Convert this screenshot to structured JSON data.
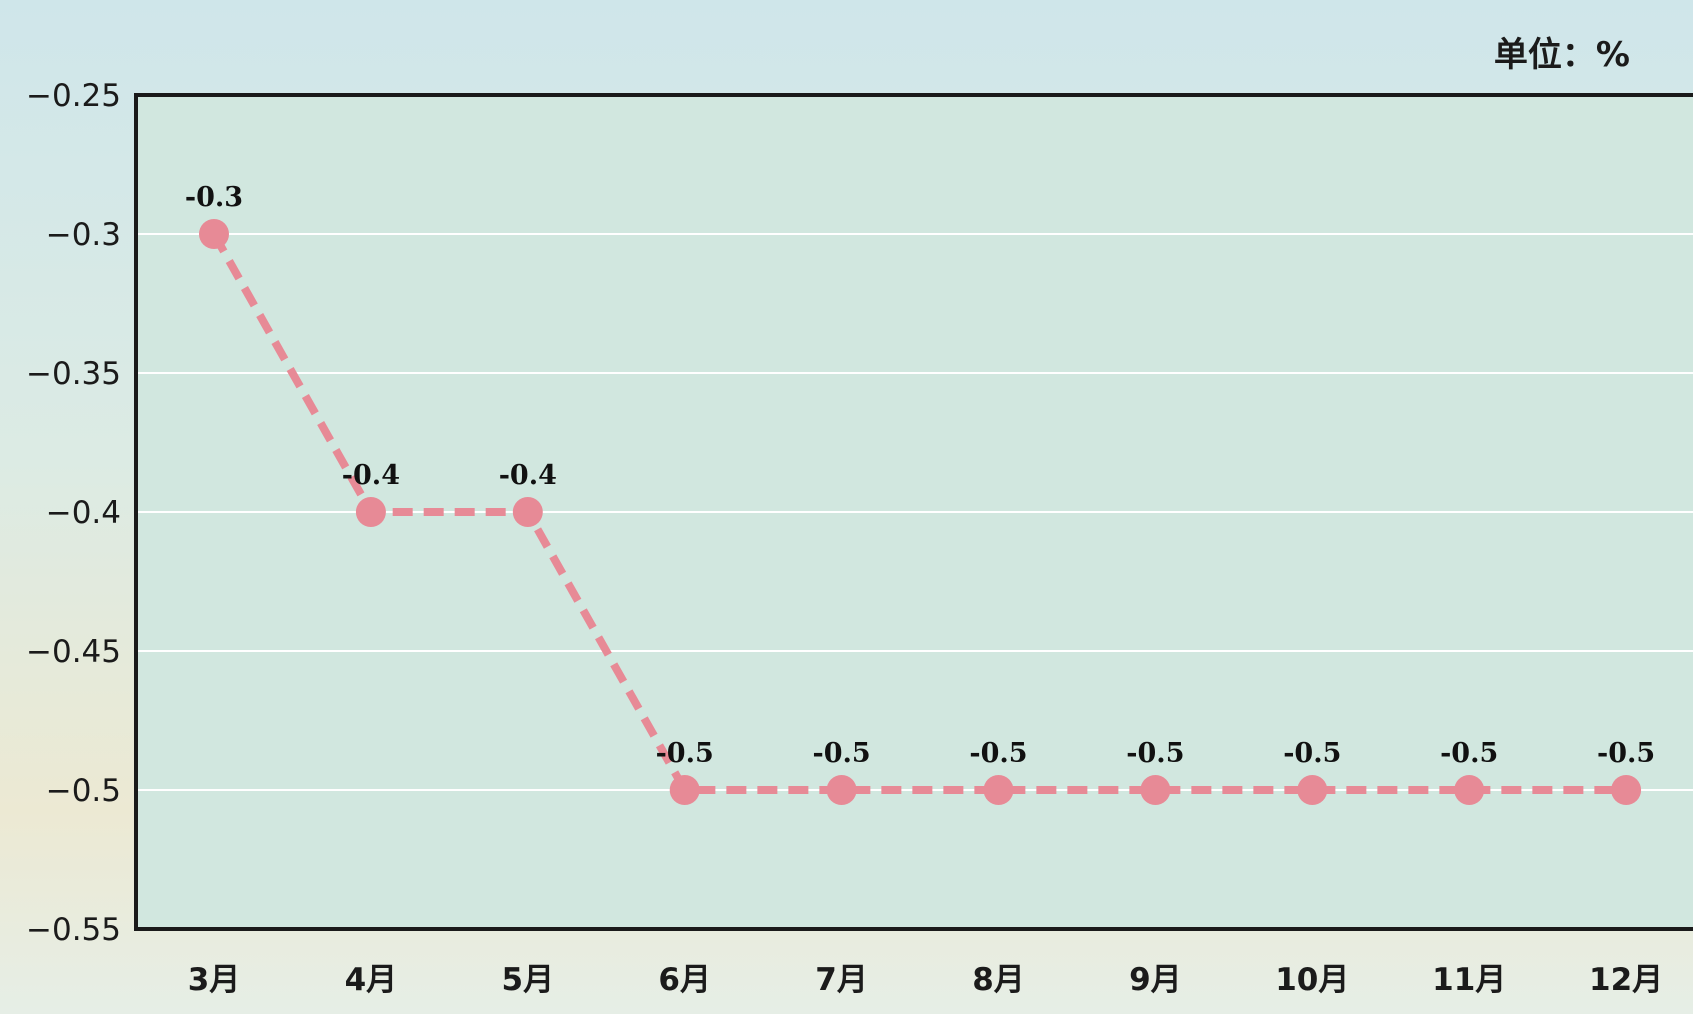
{
  "chart_data": {
    "type": "line",
    "unit_label": "单位：%",
    "categories": [
      "3月",
      "4月",
      "5月",
      "6月",
      "7月",
      "8月",
      "9月",
      "10月",
      "11月",
      "12月"
    ],
    "series": [
      {
        "values": [
          -0.3,
          -0.4,
          -0.4,
          -0.5,
          -0.5,
          -0.5,
          -0.5,
          -0.5,
          -0.5,
          -0.5
        ]
      }
    ],
    "data_labels": [
      "-0.3",
      "-0.4",
      "-0.4",
      "-0.5",
      "-0.5",
      "-0.5",
      "-0.5",
      "-0.5",
      "-0.5",
      "-0.5"
    ],
    "ylim": [
      -0.55,
      -0.25
    ],
    "yticks": [
      -0.25,
      -0.3,
      -0.35,
      -0.4,
      -0.45,
      -0.5,
      -0.55
    ],
    "ytick_labels": [
      "−0.25",
      "−0.3",
      "−0.35",
      "−0.4",
      "−0.45",
      "−0.5",
      "−0.55"
    ],
    "grid": true,
    "line_style": "dashed",
    "colors": {
      "plot_background": "#d1e7df",
      "grid": "#ffffff",
      "axis": "#1a1a1a",
      "series": "#e78a96"
    }
  }
}
